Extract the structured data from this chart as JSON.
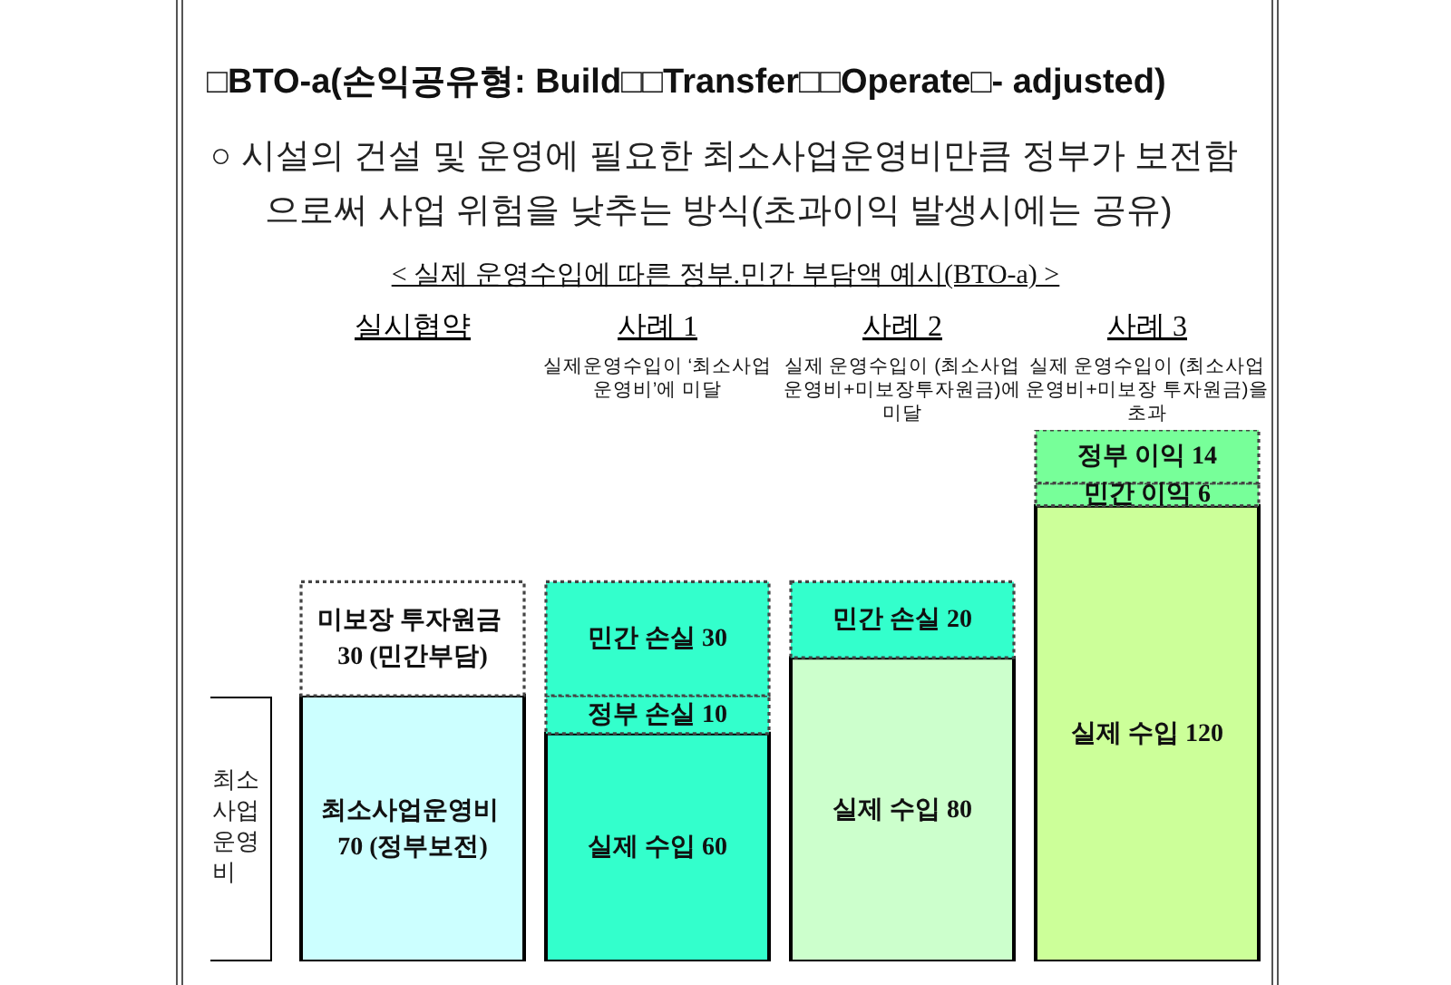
{
  "chart_data": {
    "type": "bar",
    "title": "□BTO-a(손익공유형: Build□□Transfer□□Operate□- adjusted)",
    "subtitle": "○ 시설의 건설 및 운영에 필요한 최소사업운영비만큼 정부가 보전함으로써 사업 위험을 낮추는 방식(초과이익 발생시에는 공유)",
    "annotations": [
      "< 실제 운영수입에 따른 정부.민간 부담액 예시(BTO-a) >",
      "최소사업운영비",
      "실제운영수입이 ‘최소사업운영비’에 미달",
      "실제 운영수입이 (최소사업운영비+미보장투자원금)에 미달",
      "실제 운영수입이 (최소사업운영비+미보장 투자원금)을 초과"
    ],
    "categories": [
      "실시협약",
      "사례 1",
      "사례 2",
      "사례 3"
    ],
    "stacked": true,
    "series": [
      {
        "colors": [
          "#ccffff",
          "#33ffcc",
          "#ccffcc",
          "#ccff99"
        ],
        "values": [
          70,
          60,
          80,
          120
        ],
        "value_labels": [
          "최소사업운영비 70 (정부보전)",
          "실제 수입 60",
          "실제 수입 80",
          "실제 수입 120"
        ],
        "line_style": "solid"
      },
      {
        "colors": [
          "#ffffff",
          "#33ffcc",
          "#33ffcc",
          "#77ff99"
        ],
        "values": [
          30,
          10,
          20,
          6
        ],
        "value_labels": [
          "미보장 투자원금 30 (민간부담)",
          "정부 손실 10",
          "민간 손실 20",
          "민간 이익 6"
        ],
        "line_style": "dotted"
      },
      {
        "colors": [
          null,
          "#33ffcc",
          null,
          "#77ff99"
        ],
        "values": [
          null,
          30,
          null,
          14
        ],
        "value_labels": [
          null,
          "민간 손실 30",
          null,
          "정부 이익 14"
        ],
        "line_style": "dotted"
      }
    ]
  }
}
